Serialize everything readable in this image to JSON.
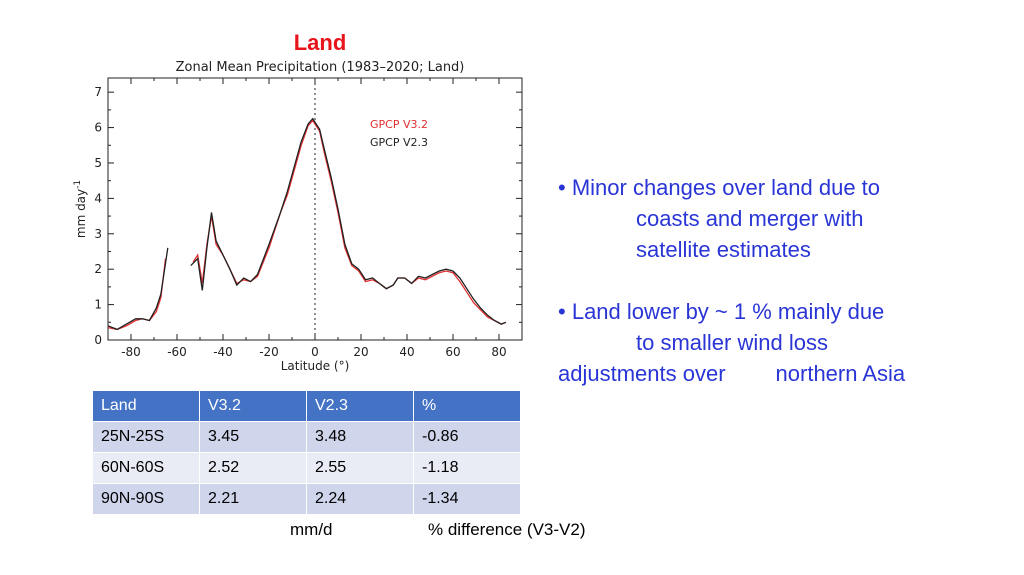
{
  "slide": {
    "title": "Land"
  },
  "chart_data": {
    "type": "line",
    "title": "Zonal Mean Precipitation (1983–2020; Land)",
    "xlabel": "Latitude (°)",
    "ylabel": "mm day",
    "ylabel_superscript": "-1",
    "xlim": [
      -90,
      90
    ],
    "ylim": [
      0,
      7.4
    ],
    "xticks": [
      -80,
      -60,
      -40,
      -20,
      0,
      20,
      40,
      60,
      80
    ],
    "yticks": [
      0,
      1,
      2,
      3,
      4,
      5,
      6,
      7
    ],
    "vline_x": 0,
    "legend_position": "top-right inside",
    "series": [
      {
        "name": "GPCP V3.2",
        "color": "#e03030",
        "segments": [
          [
            [
              -90,
              0.35
            ],
            [
              -86,
              0.3
            ],
            [
              -82,
              0.4
            ],
            [
              -78,
              0.55
            ],
            [
              -75,
              0.6
            ],
            [
              -72,
              0.55
            ],
            [
              -69,
              0.8
            ],
            [
              -67,
              1.2
            ],
            [
              -65,
              2.3
            ]
          ],
          [
            [
              -53,
              2.2
            ],
            [
              -51,
              2.4
            ],
            [
              -49,
              1.6
            ],
            [
              -47,
              2.7
            ],
            [
              -45,
              3.5
            ],
            [
              -43,
              2.7
            ],
            [
              -40,
              2.4
            ],
            [
              -37,
              2.0
            ],
            [
              -34,
              1.6
            ],
            [
              -31,
              1.7
            ],
            [
              -28,
              1.65
            ],
            [
              -25,
              1.8
            ],
            [
              -20,
              2.6
            ],
            [
              -15,
              3.6
            ],
            [
              -12,
              4.1
            ],
            [
              -9,
              4.8
            ],
            [
              -6,
              5.5
            ],
            [
              -3,
              6.05
            ],
            [
              -1,
              6.2
            ],
            [
              2,
              5.9
            ],
            [
              4,
              5.3
            ],
            [
              7,
              4.5
            ],
            [
              10,
              3.6
            ],
            [
              13,
              2.6
            ],
            [
              16,
              2.1
            ],
            [
              19,
              1.95
            ],
            [
              22,
              1.65
            ],
            [
              25,
              1.7
            ],
            [
              28,
              1.6
            ],
            [
              31,
              1.45
            ],
            [
              34,
              1.55
            ],
            [
              36,
              1.75
            ],
            [
              39,
              1.75
            ],
            [
              42,
              1.6
            ],
            [
              45,
              1.75
            ],
            [
              48,
              1.7
            ],
            [
              51,
              1.8
            ],
            [
              54,
              1.9
            ],
            [
              57,
              1.95
            ],
            [
              60,
              1.9
            ],
            [
              63,
              1.65
            ],
            [
              66,
              1.35
            ],
            [
              69,
              1.05
            ],
            [
              72,
              0.85
            ],
            [
              75,
              0.65
            ],
            [
              78,
              0.55
            ],
            [
              81,
              0.45
            ],
            [
              83,
              0.5
            ]
          ]
        ]
      },
      {
        "name": "GPCP V2.3",
        "color": "#222222",
        "segments": [
          [
            [
              -90,
              0.4
            ],
            [
              -86,
              0.3
            ],
            [
              -82,
              0.45
            ],
            [
              -78,
              0.6
            ],
            [
              -75,
              0.6
            ],
            [
              -72,
              0.55
            ],
            [
              -69,
              0.9
            ],
            [
              -67,
              1.3
            ],
            [
              -64,
              2.6
            ]
          ],
          [
            [
              -54,
              2.1
            ],
            [
              -51,
              2.3
            ],
            [
              -49,
              1.4
            ],
            [
              -47,
              2.6
            ],
            [
              -45,
              3.6
            ],
            [
              -43,
              2.8
            ],
            [
              -40,
              2.4
            ],
            [
              -37,
              2.0
            ],
            [
              -34,
              1.55
            ],
            [
              -31,
              1.75
            ],
            [
              -28,
              1.65
            ],
            [
              -25,
              1.85
            ],
            [
              -20,
              2.7
            ],
            [
              -15,
              3.6
            ],
            [
              -12,
              4.2
            ],
            [
              -9,
              4.9
            ],
            [
              -6,
              5.6
            ],
            [
              -3,
              6.1
            ],
            [
              -1,
              6.25
            ],
            [
              2,
              5.95
            ],
            [
              4,
              5.4
            ],
            [
              7,
              4.6
            ],
            [
              10,
              3.7
            ],
            [
              13,
              2.7
            ],
            [
              16,
              2.15
            ],
            [
              19,
              2.0
            ],
            [
              22,
              1.7
            ],
            [
              25,
              1.75
            ],
            [
              28,
              1.6
            ],
            [
              31,
              1.45
            ],
            [
              34,
              1.55
            ],
            [
              36,
              1.75
            ],
            [
              39,
              1.75
            ],
            [
              42,
              1.6
            ],
            [
              45,
              1.8
            ],
            [
              48,
              1.75
            ],
            [
              51,
              1.85
            ],
            [
              54,
              1.95
            ],
            [
              57,
              2.0
            ],
            [
              60,
              1.95
            ],
            [
              63,
              1.75
            ],
            [
              66,
              1.45
            ],
            [
              69,
              1.15
            ],
            [
              72,
              0.9
            ],
            [
              75,
              0.7
            ],
            [
              78,
              0.55
            ],
            [
              81,
              0.45
            ],
            [
              83,
              0.5
            ]
          ]
        ]
      }
    ]
  },
  "bullets": {
    "b1": {
      "marker": "•",
      "line1": "Minor changes over land due to",
      "line2": "coasts and merger with",
      "line3": "satellite estimates"
    },
    "b2": {
      "marker": "•",
      "line1": "Land lower by ~ 1 % mainly due",
      "line2": "to smaller wind loss",
      "line3a": "adjustments over",
      "line3b": "northern Asia"
    }
  },
  "table": {
    "headers": [
      "Land",
      "V3.2",
      "V2.3",
      "%"
    ],
    "rows": [
      [
        "25N-25S",
        "3.45",
        "3.48",
        "-0.86"
      ],
      [
        "60N-60S",
        "2.52",
        "2.55",
        "-1.18"
      ],
      [
        "90N-90S",
        "2.21",
        "2.24",
        "-1.34"
      ]
    ]
  },
  "footnotes": {
    "units": "mm/d",
    "difference": "% difference (V3-V2)"
  }
}
